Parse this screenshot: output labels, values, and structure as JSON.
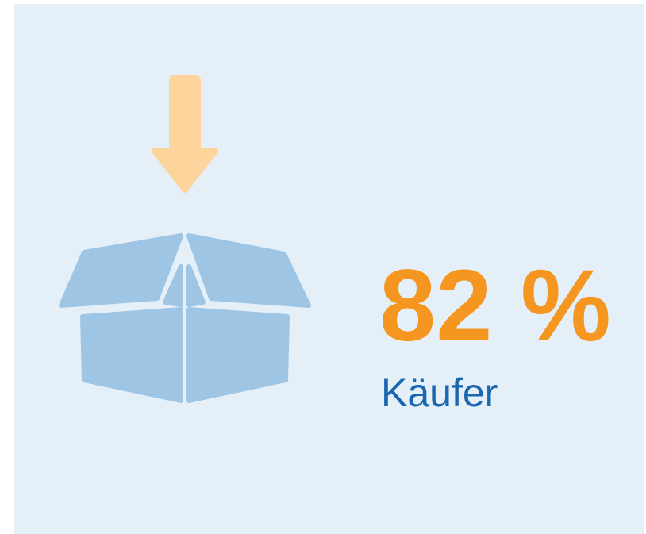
{
  "stat": {
    "value": "82 %",
    "label": "Käufer"
  }
}
